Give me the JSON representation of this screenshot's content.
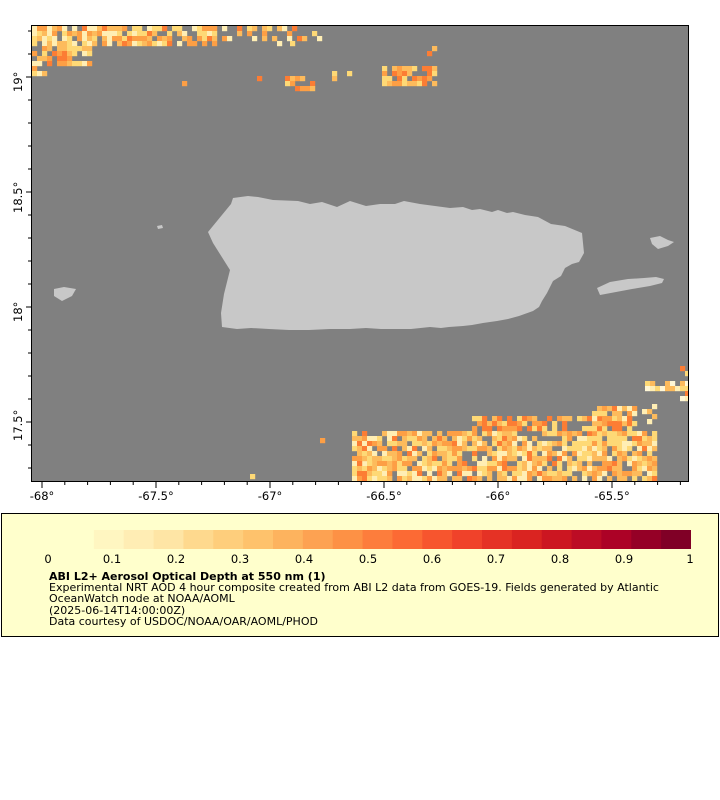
{
  "map": {
    "background_color": "#808080",
    "land_color": "#c8c8c8",
    "x_ticks": [
      "-68°",
      "-67.5°",
      "-67°",
      "-66.5°",
      "-66°",
      "-65.5°"
    ],
    "y_ticks": [
      "19°",
      "18.5°",
      "18°",
      "17.5°"
    ],
    "palette": [
      "#fff7d6",
      "#ffeeb4",
      "#fed976",
      "#fdbb5c",
      "#fd9f45",
      "#fc7d34",
      "#f03b20"
    ]
  },
  "legend": {
    "colorbar_ticks": [
      "0",
      "0.1",
      "0.2",
      "0.3",
      "0.4",
      "0.5",
      "0.6",
      "0.7",
      "0.8",
      "0.9",
      "1"
    ],
    "colorbar_colors": [
      "#ffffcc",
      "#fff6c1",
      "#ffedb4",
      "#fee5a5",
      "#fed98e",
      "#fece7c",
      "#fec26c",
      "#fdb35e",
      "#fda252",
      "#fd9145",
      "#fd7d3c",
      "#fc6a34",
      "#f7552e",
      "#f0422a",
      "#e53225",
      "#da2421",
      "#cc1621",
      "#bc0c25",
      "#ac0226",
      "#950026",
      "#800026"
    ],
    "title": "ABI L2+ Aerosol Optical Depth at 550 nm (1)",
    "line1": "Experimental NRT AOD 4 hour composite created from ABI L2 data from GOES-19. Fields generated by Atlantic",
    "line2": "OceanWatch node at NOAA/AOML",
    "line3": "(2025-06-14T14:00:00Z)",
    "line4": "Data courtesy of USDOC/NOAA/OAR/AOML/PHOD"
  }
}
